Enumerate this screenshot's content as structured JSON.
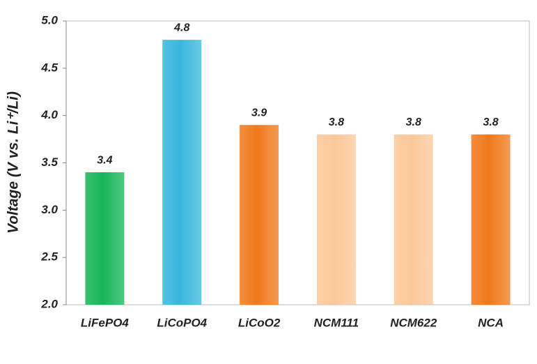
{
  "chart_data": {
    "type": "bar",
    "y_label": "Voltage (V vs. Li⁺/Li)",
    "categories": [
      "LiFePO4",
      "LiCoPO4",
      "LiCoO2",
      "NCM111",
      "NCM622",
      "NCA"
    ],
    "values": [
      3.4,
      4.8,
      3.9,
      3.8,
      3.8,
      3.8
    ],
    "colors": [
      "#17b558",
      "#3ab6dc",
      "#f0791b",
      "#fcc898",
      "#fcc898",
      "#f0791b"
    ],
    "ylim": [
      2.0,
      5.0
    ],
    "yticks": [
      {
        "value": 2.0,
        "label": "2.0"
      },
      {
        "value": 2.5,
        "label": "2.5"
      },
      {
        "value": 3.0,
        "label": "3.0"
      },
      {
        "value": 3.5,
        "label": "3.5"
      },
      {
        "value": 4.0,
        "label": "4.0"
      },
      {
        "value": 4.5,
        "label": "4.5"
      },
      {
        "value": 5.0,
        "label": "5.0"
      }
    ],
    "grid": false
  }
}
